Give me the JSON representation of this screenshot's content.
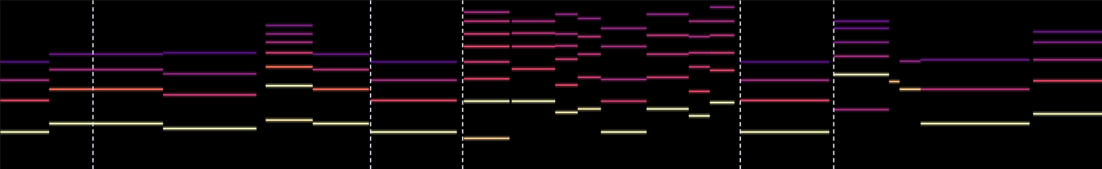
{
  "chart_data": {
    "type": "spectrogram",
    "xlim": [
      0,
      1568
    ],
    "ylim": [
      0,
      241
    ],
    "tick_labels": false,
    "level_range": [
      0,
      1
    ],
    "dividers": [
      132,
      527,
      658,
      1053,
      1186
    ],
    "notes": [
      {
        "start": 0,
        "end": 70,
        "lines": [
          53,
          98,
          127,
          153
        ],
        "levels": [
          1,
          0.6,
          0.45,
          0.25
        ]
      },
      {
        "start": 70,
        "end": 232,
        "lines": [
          65,
          114,
          142,
          164
        ],
        "levels": [
          1,
          0.7,
          0.45,
          0.3
        ]
      },
      {
        "start": 232,
        "end": 365,
        "lines": [
          58,
          106,
          136,
          166
        ],
        "levels": [
          1,
          0.55,
          0.4,
          0.25
        ]
      },
      {
        "start": 378,
        "end": 445,
        "lines": [
          70,
          119,
          146,
          166,
          181,
          193,
          205
        ],
        "levels": [
          0.95,
          1,
          0.7,
          0.55,
          0.45,
          0.4,
          0.35
        ]
      },
      {
        "start": 445,
        "end": 525,
        "lines": [
          65,
          114,
          142,
          164
        ],
        "levels": [
          1,
          0.7,
          0.5,
          0.3
        ]
      },
      {
        "start": 527,
        "end": 650,
        "lines": [
          53,
          98,
          127,
          153
        ],
        "levels": [
          1,
          0.6,
          0.45,
          0.25
        ]
      },
      {
        "start": 660,
        "end": 725,
        "lines": [
          44,
          97,
          129,
          153,
          175,
          193,
          211,
          224
        ],
        "levels": [
          0.9,
          1,
          0.6,
          0.55,
          0.6,
          0.55,
          0.5,
          0.45
        ]
      },
      {
        "start": 728,
        "end": 790,
        "lines": [
          97,
          143,
          175,
          194,
          211
        ],
        "levels": [
          1,
          0.6,
          0.55,
          0.5,
          0.45
        ]
      },
      {
        "start": 790,
        "end": 822,
        "lines": [
          81,
          120,
          157,
          176,
          193,
          221
        ],
        "levels": [
          0.95,
          0.6,
          0.55,
          0.5,
          0.45,
          0.4
        ]
      },
      {
        "start": 822,
        "end": 855,
        "lines": [
          86,
          131,
          164,
          189,
          215
        ],
        "levels": [
          0.95,
          0.55,
          0.5,
          0.5,
          0.4
        ]
      },
      {
        "start": 855,
        "end": 920,
        "lines": [
          53,
          97,
          128,
          175,
          201
        ],
        "levels": [
          1,
          0.55,
          0.45,
          0.45,
          0.4
        ]
      },
      {
        "start": 920,
        "end": 980,
        "lines": [
          86,
          131,
          164,
          191,
          221
        ],
        "levels": [
          1,
          0.55,
          0.5,
          0.5,
          0.4
        ]
      },
      {
        "start": 980,
        "end": 1010,
        "lines": [
          76,
          111,
          146,
          166,
          189,
          211
        ],
        "levels": [
          1,
          0.6,
          0.55,
          0.5,
          0.45,
          0.45
        ]
      },
      {
        "start": 1010,
        "end": 1045,
        "lines": [
          95,
          141,
          166,
          191,
          211,
          231
        ],
        "levels": [
          1,
          0.6,
          0.55,
          0.5,
          0.45,
          0.4
        ]
      },
      {
        "start": 1053,
        "end": 1180,
        "lines": [
          53,
          98,
          127,
          153
        ],
        "levels": [
          1,
          0.6,
          0.45,
          0.25
        ]
      },
      {
        "start": 1186,
        "end": 1265,
        "lines": [
          85,
          135,
          161,
          181,
          201,
          211
        ],
        "levels": [
          0.45,
          1,
          0.45,
          0.35,
          0.3,
          0.3
        ]
      },
      {
        "start": 1265,
        "end": 1280,
        "lines": [
          125
        ],
        "levels": [
          0.85
        ]
      },
      {
        "start": 1280,
        "end": 1310,
        "lines": [
          114,
          154
        ],
        "levels": [
          0.9,
          0.4
        ]
      },
      {
        "start": 1310,
        "end": 1465,
        "lines": [
          65,
          114,
          156
        ],
        "levels": [
          1,
          0.5,
          0.3
        ]
      },
      {
        "start": 1470,
        "end": 1568,
        "lines": [
          79,
          126,
          156,
          181,
          196
        ],
        "levels": [
          1,
          0.6,
          0.45,
          0.35,
          0.3
        ]
      }
    ]
  }
}
